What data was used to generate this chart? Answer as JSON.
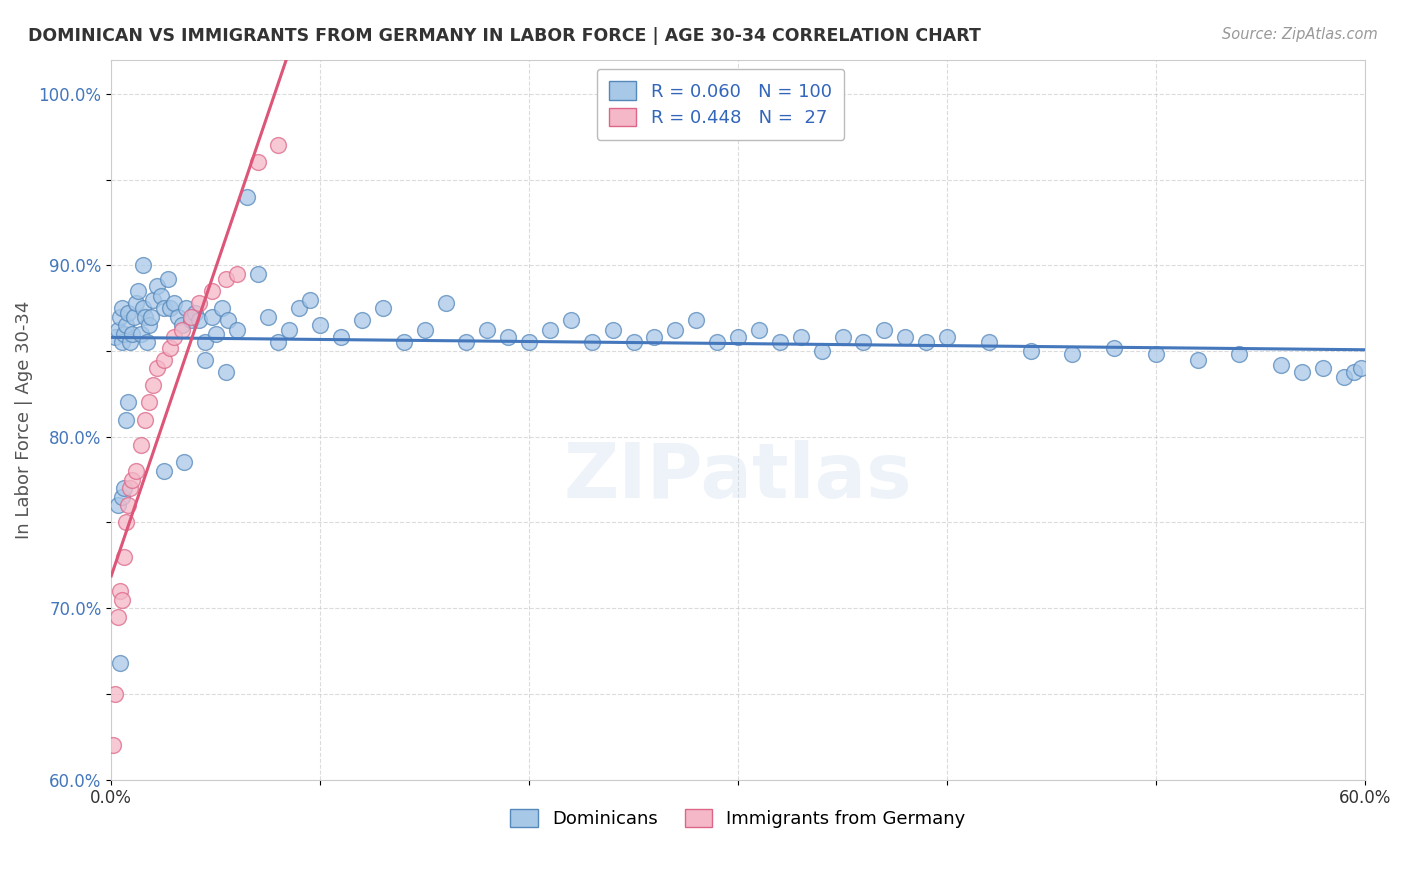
{
  "title": "DOMINICAN VS IMMIGRANTS FROM GERMANY IN LABOR FORCE | AGE 30-34 CORRELATION CHART",
  "source": "Source: ZipAtlas.com",
  "ylabel": "In Labor Force | Age 30-34",
  "blue_R": 0.06,
  "blue_N": 100,
  "pink_R": 0.448,
  "pink_N": 27,
  "blue_color": "#a8c8e8",
  "pink_color": "#f4b8c8",
  "blue_edge_color": "#5588bb",
  "pink_edge_color": "#dd6688",
  "blue_line_color": "#4477bb",
  "pink_line_color": "#dd5577",
  "legend_blue_label": "Dominicans",
  "legend_pink_label": "Immigrants from Germany",
  "xlim": [
    0.0,
    0.6
  ],
  "ylim": [
    0.6,
    1.02
  ],
  "background_color": "#ffffff",
  "grid_color": "#cccccc",
  "title_color": "#333333",
  "blue_x": [
    0.002,
    0.003,
    0.004,
    0.005,
    0.005,
    0.006,
    0.007,
    0.008,
    0.009,
    0.01,
    0.011,
    0.012,
    0.013,
    0.014,
    0.015,
    0.016,
    0.017,
    0.018,
    0.019,
    0.02,
    0.022,
    0.024,
    0.025,
    0.027,
    0.028,
    0.03,
    0.032,
    0.034,
    0.036,
    0.038,
    0.04,
    0.042,
    0.045,
    0.048,
    0.05,
    0.053,
    0.056,
    0.06,
    0.065,
    0.07,
    0.075,
    0.08,
    0.085,
    0.09,
    0.095,
    0.1,
    0.11,
    0.12,
    0.13,
    0.14,
    0.15,
    0.16,
    0.17,
    0.18,
    0.19,
    0.2,
    0.21,
    0.22,
    0.23,
    0.24,
    0.25,
    0.26,
    0.27,
    0.28,
    0.29,
    0.3,
    0.31,
    0.32,
    0.33,
    0.34,
    0.35,
    0.36,
    0.37,
    0.38,
    0.39,
    0.4,
    0.42,
    0.44,
    0.46,
    0.48,
    0.5,
    0.52,
    0.54,
    0.56,
    0.003,
    0.004,
    0.005,
    0.006,
    0.007,
    0.008,
    0.57,
    0.58,
    0.59,
    0.595,
    0.598,
    0.015,
    0.025,
    0.035,
    0.045,
    0.055
  ],
  "blue_y": [
    0.858,
    0.862,
    0.87,
    0.855,
    0.875,
    0.86,
    0.865,
    0.872,
    0.855,
    0.86,
    0.87,
    0.878,
    0.885,
    0.86,
    0.875,
    0.87,
    0.855,
    0.865,
    0.87,
    0.88,
    0.888,
    0.882,
    0.875,
    0.892,
    0.875,
    0.878,
    0.87,
    0.865,
    0.875,
    0.868,
    0.872,
    0.868,
    0.855,
    0.87,
    0.86,
    0.875,
    0.868,
    0.862,
    0.94,
    0.895,
    0.87,
    0.855,
    0.862,
    0.875,
    0.88,
    0.865,
    0.858,
    0.868,
    0.875,
    0.855,
    0.862,
    0.878,
    0.855,
    0.862,
    0.858,
    0.855,
    0.862,
    0.868,
    0.855,
    0.862,
    0.855,
    0.858,
    0.862,
    0.868,
    0.855,
    0.858,
    0.862,
    0.855,
    0.858,
    0.85,
    0.858,
    0.855,
    0.862,
    0.858,
    0.855,
    0.858,
    0.855,
    0.85,
    0.848,
    0.852,
    0.848,
    0.845,
    0.848,
    0.842,
    0.76,
    0.668,
    0.765,
    0.77,
    0.81,
    0.82,
    0.838,
    0.84,
    0.835,
    0.838,
    0.84,
    0.9,
    0.78,
    0.785,
    0.845,
    0.838
  ],
  "pink_x": [
    0.001,
    0.002,
    0.003,
    0.004,
    0.005,
    0.006,
    0.007,
    0.008,
    0.009,
    0.01,
    0.012,
    0.014,
    0.016,
    0.018,
    0.02,
    0.022,
    0.025,
    0.028,
    0.03,
    0.034,
    0.038,
    0.042,
    0.048,
    0.055,
    0.06,
    0.07,
    0.08
  ],
  "pink_y": [
    0.62,
    0.65,
    0.695,
    0.71,
    0.705,
    0.73,
    0.75,
    0.76,
    0.77,
    0.775,
    0.78,
    0.795,
    0.81,
    0.82,
    0.83,
    0.84,
    0.845,
    0.852,
    0.858,
    0.862,
    0.87,
    0.878,
    0.885,
    0.892,
    0.895,
    0.96,
    0.97
  ]
}
